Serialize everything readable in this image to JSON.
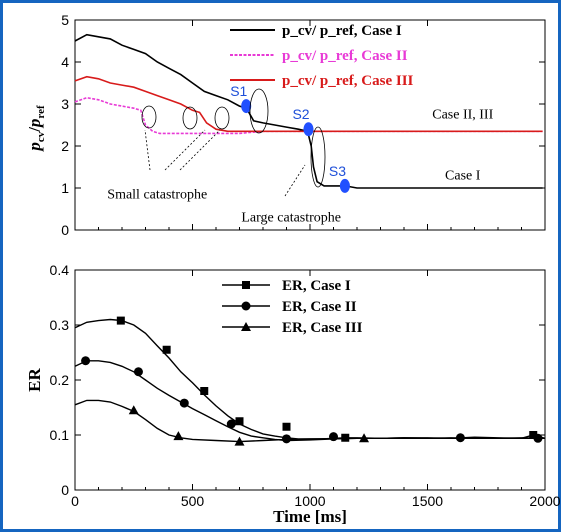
{
  "chart_data": [
    {
      "type": "line",
      "ylabel": "p_cv / p_ref",
      "xlim": [
        0,
        2000
      ],
      "ylim": [
        0,
        5
      ],
      "x_ticks": [
        "0",
        "500",
        "1000",
        "1500",
        "2000"
      ],
      "y_ticks": [
        "0",
        "1",
        "2",
        "3",
        "4",
        "5"
      ],
      "legend_position": "top-right",
      "series": [
        {
          "name": "p_cv/ p_ref, Case I",
          "color": "#000000",
          "x": [
            0,
            50,
            100,
            150,
            200,
            250,
            300,
            350,
            400,
            450,
            500,
            550,
            600,
            650,
            700,
            730,
            760,
            800,
            850,
            900,
            950,
            990,
            1005,
            1015,
            1030,
            1060,
            1100,
            1150,
            1200,
            1400,
            1600,
            1800,
            1990
          ],
          "y": [
            4.5,
            4.65,
            4.6,
            4.55,
            4.4,
            4.3,
            4.2,
            4.0,
            3.85,
            3.7,
            3.5,
            3.3,
            3.2,
            3.1,
            2.95,
            2.9,
            2.6,
            2.55,
            2.5,
            2.45,
            2.4,
            2.35,
            2.0,
            1.5,
            1.15,
            1.05,
            1.05,
            1.05,
            1.0,
            1.0,
            1.0,
            1.0,
            1.0
          ]
        },
        {
          "name": "p_cv/ p_ref, Case II",
          "color": "#e83ad6",
          "x": [
            0,
            50,
            100,
            150,
            200,
            250,
            280,
            300,
            330,
            360,
            400,
            500,
            600,
            700,
            800,
            900,
            1000,
            1100,
            1200,
            1400,
            1600,
            1800,
            1990
          ],
          "y": [
            3.05,
            3.15,
            3.1,
            3.0,
            2.95,
            2.9,
            2.85,
            2.5,
            2.35,
            2.3,
            2.3,
            2.3,
            2.3,
            2.3,
            2.35,
            2.35,
            2.35,
            2.35,
            2.35,
            2.35,
            2.35,
            2.35,
            2.35
          ]
        },
        {
          "name": "p_cv/ p_ref, Case III",
          "color": "#d81b1b",
          "x": [
            0,
            50,
            100,
            150,
            200,
            250,
            300,
            350,
            400,
            450,
            500,
            530,
            560,
            600,
            650,
            700,
            800,
            900,
            1000,
            1100,
            1200,
            1400,
            1600,
            1800,
            1990
          ],
          "y": [
            3.55,
            3.65,
            3.6,
            3.5,
            3.45,
            3.4,
            3.3,
            3.2,
            3.1,
            3.0,
            2.85,
            2.8,
            2.55,
            2.4,
            2.35,
            2.35,
            2.35,
            2.35,
            2.35,
            2.35,
            2.35,
            2.35,
            2.35,
            2.35,
            2.35
          ]
        }
      ],
      "annotations": [
        {
          "text": "S1",
          "x": 720,
          "y": 2.95,
          "color": "#1e4fd8"
        },
        {
          "text": "S2",
          "x": 985,
          "y": 2.4,
          "color": "#1e4fd8"
        },
        {
          "text": "S3",
          "x": 1140,
          "y": 1.05,
          "color": "#1e4fd8"
        },
        {
          "text": "Case II, III",
          "x": 1650,
          "y": 2.65
        },
        {
          "text": "Case I",
          "x": 1650,
          "y": 1.2
        },
        {
          "text": "Small catastrophe",
          "x": 350,
          "y": 0.75
        },
        {
          "text": "Large catastrophe",
          "x": 920,
          "y": 0.2
        }
      ]
    },
    {
      "type": "line",
      "xlabel": "Time [ms]",
      "ylabel": "ER",
      "xlim": [
        0,
        2000
      ],
      "ylim": [
        0,
        0.4
      ],
      "x_ticks": [
        "0",
        "500",
        "1000",
        "1500",
        "2000"
      ],
      "y_ticks": [
        "0",
        "0.1",
        "0.2",
        "0.3",
        "0.4"
      ],
      "legend_position": "top-center",
      "series": [
        {
          "name": "ER, Case I",
          "marker": "square",
          "x": [
            0,
            50,
            100,
            150,
            200,
            250,
            300,
            350,
            400,
            450,
            500,
            550,
            600,
            650,
            700,
            750,
            800,
            850,
            900,
            950,
            1000,
            1050,
            1100,
            1150,
            1200,
            1300,
            1400,
            1500,
            1600,
            1700,
            1800,
            1900,
            1950,
            2000
          ],
          "y": [
            0.295,
            0.305,
            0.308,
            0.31,
            0.308,
            0.3,
            0.285,
            0.262,
            0.24,
            0.215,
            0.195,
            0.173,
            0.153,
            0.135,
            0.12,
            0.11,
            0.102,
            0.098,
            0.095,
            0.093,
            0.093,
            0.093,
            0.094,
            0.095,
            0.095,
            0.094,
            0.095,
            0.095,
            0.094,
            0.096,
            0.095,
            0.094,
            0.1,
            0.094
          ],
          "marker_x": [
            195,
            390,
            550,
            700,
            900,
            1150,
            1950
          ],
          "marker_y": [
            0.308,
            0.255,
            0.18,
            0.125,
            0.115,
            0.095,
            0.1
          ]
        },
        {
          "name": "ER, Case II",
          "marker": "circle",
          "x": [
            0,
            50,
            100,
            150,
            200,
            250,
            300,
            350,
            400,
            450,
            500,
            550,
            600,
            650,
            700,
            750,
            800,
            850,
            900,
            1000,
            1100,
            1200,
            1300,
            1400,
            1500,
            1600,
            1700,
            1800,
            1900,
            2000
          ],
          "y": [
            0.225,
            0.235,
            0.235,
            0.232,
            0.225,
            0.215,
            0.2,
            0.185,
            0.172,
            0.16,
            0.148,
            0.137,
            0.126,
            0.115,
            0.105,
            0.098,
            0.095,
            0.092,
            0.09,
            0.091,
            0.093,
            0.094,
            0.094,
            0.095,
            0.094,
            0.095,
            0.094,
            0.094,
            0.095,
            0.094
          ],
          "marker_x": [
            45,
            270,
            465,
            665,
            900,
            1100,
            1640,
            1970
          ],
          "marker_y": [
            0.235,
            0.215,
            0.158,
            0.12,
            0.093,
            0.097,
            0.095,
            0.094
          ]
        },
        {
          "name": "ER, Case III",
          "marker": "triangle",
          "x": [
            0,
            50,
            100,
            150,
            200,
            250,
            300,
            350,
            400,
            450,
            500,
            600,
            700,
            800,
            900,
            1000,
            1200,
            1400,
            1600,
            1800,
            2000
          ],
          "y": [
            0.155,
            0.163,
            0.163,
            0.16,
            0.152,
            0.143,
            0.128,
            0.112,
            0.1,
            0.095,
            0.092,
            0.09,
            0.088,
            0.09,
            0.092,
            0.093,
            0.094,
            0.094,
            0.094,
            0.094,
            0.094
          ],
          "marker_x": [
            250,
            440,
            700,
            1230
          ],
          "marker_y": [
            0.145,
            0.098,
            0.088,
            0.094
          ]
        }
      ]
    }
  ]
}
